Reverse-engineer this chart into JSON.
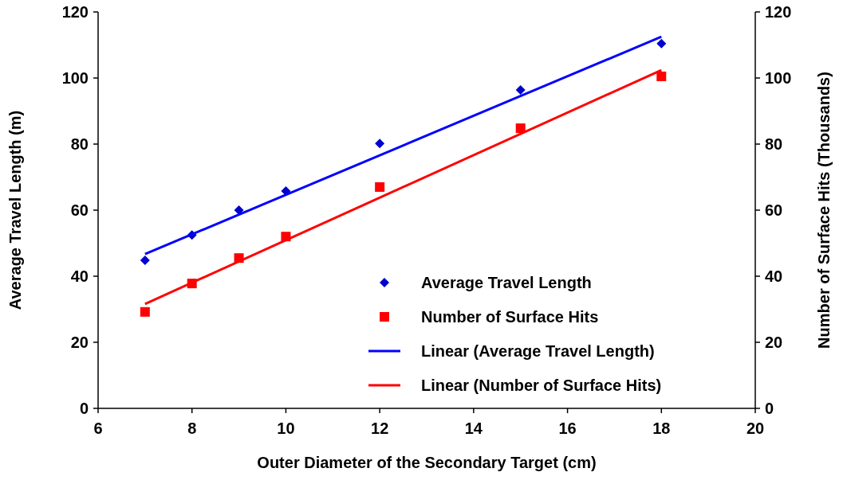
{
  "chart_data": {
    "type": "scatter",
    "xlabel": "Outer Diameter of the Secondary Target (cm)",
    "ylabel": "Average Travel Length (m)",
    "y2label": "Number of Surface Hits (Thousands)",
    "xlim": [
      6,
      20
    ],
    "xticks": [
      6,
      8,
      10,
      12,
      14,
      16,
      18,
      20
    ],
    "ylim": [
      0,
      120
    ],
    "yticks": [
      0,
      20,
      40,
      60,
      80,
      100,
      120
    ],
    "y2lim": [
      0,
      120
    ],
    "y2ticks": [
      0,
      20,
      40,
      60,
      80,
      100,
      120
    ],
    "grid": false,
    "legend": "bottom right",
    "series": [
      {
        "name": "Average Travel Length",
        "marker": "diamond",
        "color": "#0000cc",
        "x": [
          7,
          8,
          9,
          10,
          12,
          15,
          18
        ],
        "values": [
          44.8,
          52.5,
          60,
          65.8,
          80.2,
          96.4,
          110.4
        ]
      },
      {
        "name": "Number of Surface Hits",
        "marker": "square",
        "color": "#ff0000",
        "axis": "y2",
        "x": [
          7,
          8,
          9,
          10,
          12,
          15,
          18
        ],
        "values": [
          29.2,
          37.8,
          45.5,
          52,
          67,
          84.8,
          100.5
        ]
      },
      {
        "name": "Linear (Average Travel Length)",
        "type": "line",
        "marker": "none",
        "line_style": "solid",
        "color": "#0000ff",
        "x": [
          7,
          18
        ],
        "values": [
          46.7,
          112.5
        ]
      },
      {
        "name": "Linear (Number of Surface Hits)",
        "type": "line",
        "marker": "none",
        "line_style": "solid",
        "color": "#ff0000",
        "axis": "y2",
        "x": [
          7,
          18
        ],
        "values": [
          31.6,
          102.4
        ]
      }
    ]
  }
}
